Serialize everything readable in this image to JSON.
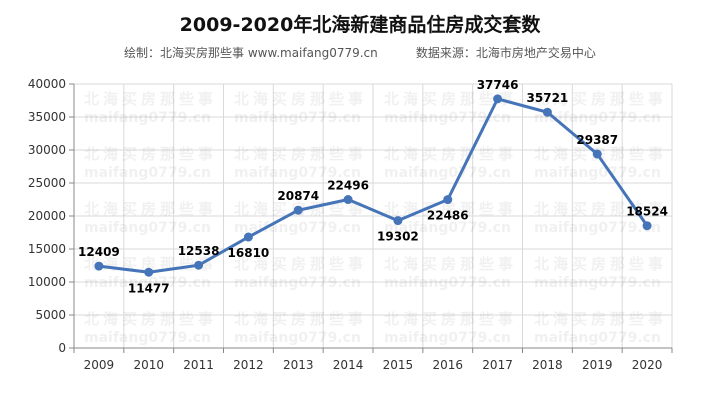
{
  "chart_data": {
    "type": "line",
    "title": "2009-2020年北海新建商品住房成交套数",
    "subtitle_left": "绘制：北海买房那些事 www.maifang0779.cn",
    "subtitle_right": "数据来源：北海市房地产交易中心",
    "watermark_text": "北海买房那些事",
    "watermark_url": "maifang0779.cn",
    "categories": [
      "2009",
      "2010",
      "2011",
      "2012",
      "2013",
      "2014",
      "2015",
      "2016",
      "2017",
      "2018",
      "2019",
      "2020"
    ],
    "series": [
      {
        "values": [
          12409,
          11477,
          12538,
          16810,
          20874,
          22496,
          19302,
          22486,
          37746,
          35721,
          29387,
          18524
        ],
        "labels": [
          "12409",
          "11477",
          "12538",
          "16810",
          "20874",
          "22496",
          "19302",
          "22486",
          "37746",
          "35721",
          "29387",
          "18524"
        ],
        "label_pos": [
          "above",
          "below",
          "above",
          "below",
          "above",
          "above",
          "below",
          "below",
          "above",
          "above",
          "above",
          "above"
        ]
      }
    ],
    "yticks": [
      "0",
      "5000",
      "10000",
      "15000",
      "20000",
      "25000",
      "30000",
      "35000",
      "40000"
    ],
    "ylim": [
      0,
      40000
    ],
    "grid": true,
    "colors": {
      "line": "#4574b8",
      "grid": "#d9d9d9",
      "axis": "#888888",
      "label": "#000000"
    }
  }
}
